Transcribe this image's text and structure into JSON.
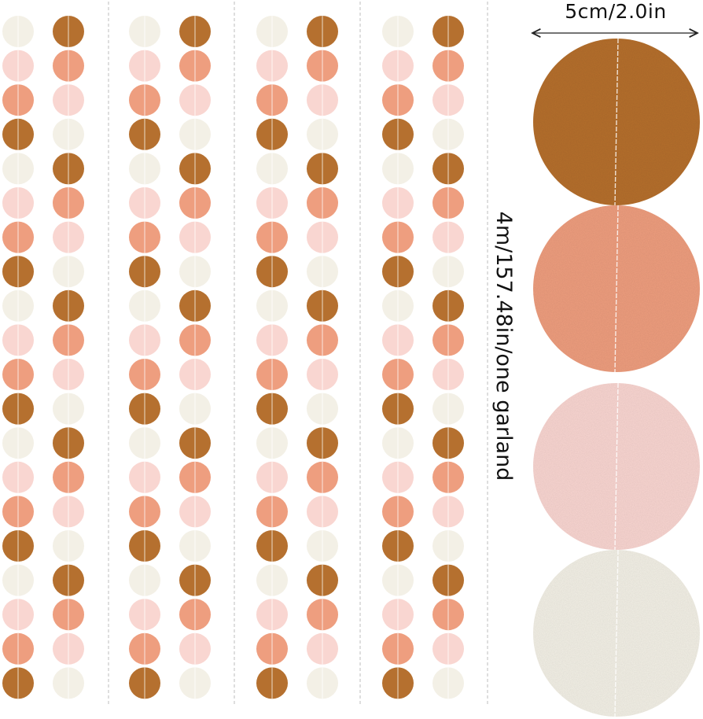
{
  "labels": {
    "circle_diameter": "5cm/2.0in",
    "garland_length": "4m/157.48in/one garland"
  },
  "colors": {
    "background": "#ffffff",
    "copper": "#b5702f",
    "salmon": "#ee9e7f",
    "light_pink": "#f9d6d1",
    "cream": "#f3f0e6",
    "string": "#ffffff",
    "divider": "#bdbdbd",
    "arrow": "#222222"
  },
  "garland_pattern": [
    "cream",
    "copper",
    "light_pink",
    "salmon",
    "salmon",
    "light_pink",
    "copper",
    "cream"
  ],
  "garland_strands": 4,
  "enlarged_circles": [
    "copper",
    "salmon",
    "light_pink",
    "cream"
  ]
}
